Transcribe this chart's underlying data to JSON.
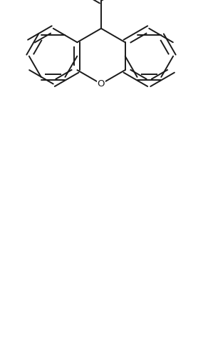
{
  "bg_color": "#ffffff",
  "line_color": "#1a1a1a",
  "line_width": 1.4,
  "font_size": 8.5,
  "figsize": [
    2.85,
    4.72
  ],
  "dpi": 100
}
